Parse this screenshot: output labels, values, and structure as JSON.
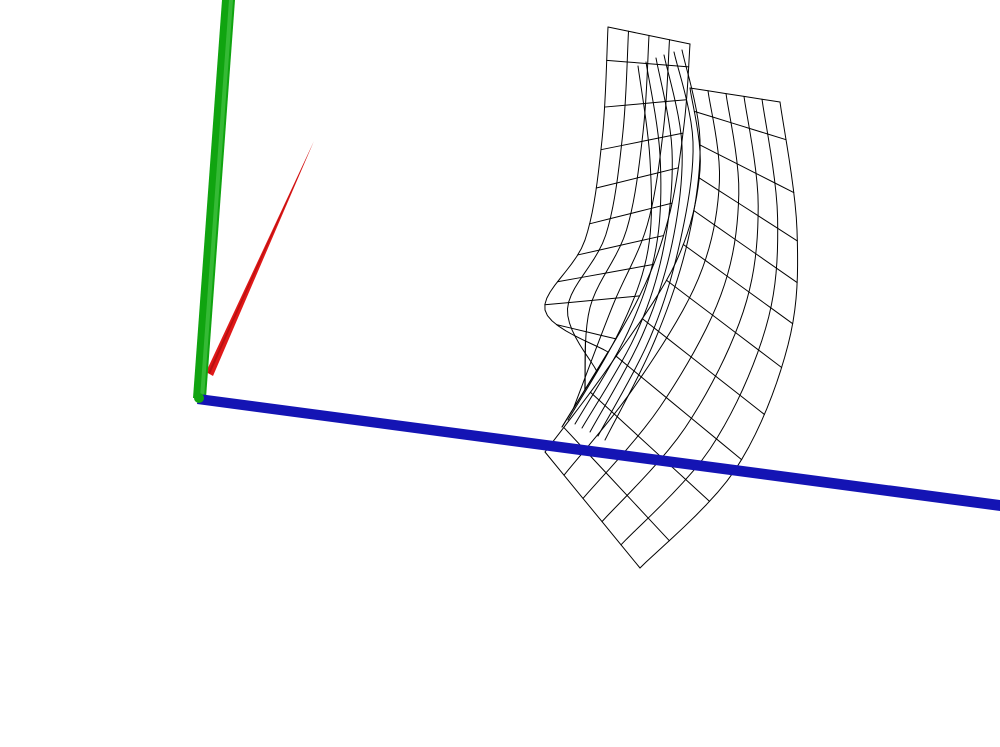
{
  "scene": {
    "background": "#ffffff",
    "axes": [
      {
        "name": "x-axis",
        "color": "#e01818"
      },
      {
        "name": "y-axis",
        "color": "#10a410"
      },
      {
        "name": "z-axis",
        "color": "#1414b4"
      }
    ],
    "surface": {
      "render_mode": "wireframe",
      "line_color": "#000000"
    }
  }
}
